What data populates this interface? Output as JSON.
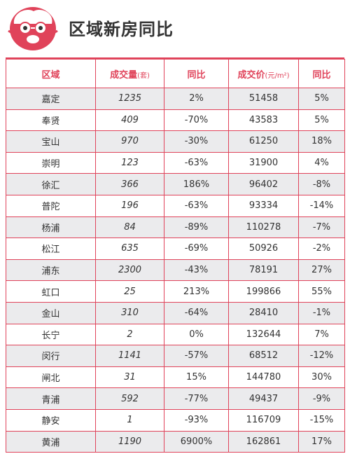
{
  "header": {
    "title": "区域新房同比"
  },
  "colors": {
    "accent": "#e0435a",
    "row_shade": "#ebebed",
    "text": "#333333"
  },
  "table": {
    "columns": [
      {
        "label": "区域",
        "unit": ""
      },
      {
        "label": "成交量",
        "unit": "(套)"
      },
      {
        "label": "同比",
        "unit": ""
      },
      {
        "label": "成交价",
        "unit": "(元/m²)"
      },
      {
        "label": "同比",
        "unit": ""
      }
    ],
    "rows": [
      {
        "district": "嘉定",
        "volume": "1235",
        "volume_yoy": "2%",
        "price": "51458",
        "price_yoy": "5%"
      },
      {
        "district": "奉贤",
        "volume": "409",
        "volume_yoy": "-70%",
        "price": "43583",
        "price_yoy": "5%"
      },
      {
        "district": "宝山",
        "volume": "970",
        "volume_yoy": "-30%",
        "price": "61250",
        "price_yoy": "18%"
      },
      {
        "district": "崇明",
        "volume": "123",
        "volume_yoy": "-63%",
        "price": "31900",
        "price_yoy": "4%"
      },
      {
        "district": "徐汇",
        "volume": "366",
        "volume_yoy": "186%",
        "price": "96402",
        "price_yoy": "-8%"
      },
      {
        "district": "普陀",
        "volume": "196",
        "volume_yoy": "-63%",
        "price": "93334",
        "price_yoy": "-14%"
      },
      {
        "district": "杨浦",
        "volume": "84",
        "volume_yoy": "-89%",
        "price": "110278",
        "price_yoy": "-7%"
      },
      {
        "district": "松江",
        "volume": "635",
        "volume_yoy": "-69%",
        "price": "50926",
        "price_yoy": "-2%"
      },
      {
        "district": "浦东",
        "volume": "2300",
        "volume_yoy": "-43%",
        "price": "78191",
        "price_yoy": "27%"
      },
      {
        "district": "虹口",
        "volume": "25",
        "volume_yoy": "213%",
        "price": "199866",
        "price_yoy": "55%"
      },
      {
        "district": "金山",
        "volume": "310",
        "volume_yoy": "-64%",
        "price": "28410",
        "price_yoy": "-1%"
      },
      {
        "district": "长宁",
        "volume": "2",
        "volume_yoy": "0%",
        "price": "132644",
        "price_yoy": "7%"
      },
      {
        "district": "闵行",
        "volume": "1141",
        "volume_yoy": "-57%",
        "price": "68512",
        "price_yoy": "-12%"
      },
      {
        "district": "闸北",
        "volume": "31",
        "volume_yoy": "15%",
        "price": "144780",
        "price_yoy": "30%"
      },
      {
        "district": "青浦",
        "volume": "592",
        "volume_yoy": "-77%",
        "price": "49437",
        "price_yoy": "-9%"
      },
      {
        "district": "静安",
        "volume": "1",
        "volume_yoy": "-93%",
        "price": "116709",
        "price_yoy": "-15%"
      },
      {
        "district": "黄浦",
        "volume": "1190",
        "volume_yoy": "6900%",
        "price": "162861",
        "price_yoy": "17%"
      }
    ]
  }
}
